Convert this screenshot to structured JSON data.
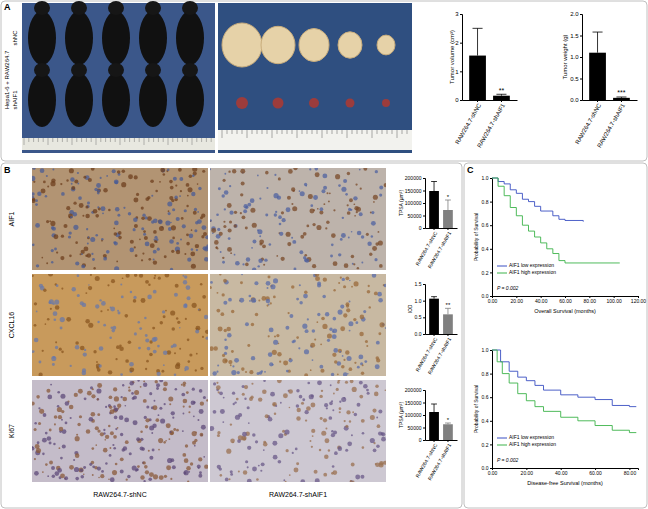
{
  "figure": {
    "panels": [
      "A",
      "B",
      "C"
    ],
    "mouse_group_title": "Hepa1-6 + RAW264.7",
    "mouse_groups": [
      "shNC",
      "shAIF1"
    ],
    "ihc_rows": [
      "AIF1",
      "CXCL16",
      "Ki67"
    ],
    "ihc_columns": [
      "RAW264.7-shNC",
      "RAW264.7-shAIF1"
    ]
  },
  "chart_data": [
    {
      "type": "bar",
      "y_label": "Tumor volume (cm³)",
      "categories": [
        "RAW264.7-shNC",
        "RAW264.7-shAIF1"
      ],
      "values": [
        1.55,
        0.15
      ],
      "errors": [
        0.95,
        0.05
      ],
      "colors": [
        "#000000",
        "#000000"
      ],
      "significance": [
        null,
        "**"
      ],
      "ylim": [
        0,
        3
      ],
      "yticks": [
        0,
        1,
        2,
        3
      ]
    },
    {
      "type": "bar",
      "y_label": "Tumor weight (g)",
      "categories": [
        "RAW264.7-shNC",
        "RAW264.7-shAIF1"
      ],
      "values": [
        1.1,
        0.05
      ],
      "errors": [
        0.48,
        0.02
      ],
      "colors": [
        "#000000",
        "#000000"
      ],
      "significance": [
        null,
        "***"
      ],
      "ylim": [
        0,
        2
      ],
      "yticks": [
        {
          "value": 0,
          "label": "0.0"
        },
        {
          "value": 0.5,
          "label": "0.5"
        },
        {
          "value": 1,
          "label": "1.0"
        },
        {
          "value": 1.5,
          "label": "1.5"
        },
        {
          "value": 2,
          "label": "2.0"
        }
      ]
    },
    {
      "type": "bar",
      "y_label": "TPSA (μm²)",
      "categories": [
        "RAW264.7-shNC",
        "RAW264.7-shAIF1"
      ],
      "values": [
        148000,
        72000
      ],
      "errors": [
        38000,
        40000
      ],
      "colors": [
        "#000000",
        "#808080"
      ],
      "significance": [
        null,
        "*"
      ],
      "ylim": [
        0,
        200000
      ],
      "yticks": [
        0,
        50000,
        100000,
        150000,
        200000
      ]
    },
    {
      "type": "bar",
      "y_label": "IOD",
      "categories": [
        "RAW264.7-shNC",
        "RAW264.7-shAIF1"
      ],
      "values": [
        1.06,
        0.59
      ],
      "errors": [
        0.06,
        0.18
      ],
      "colors": [
        "#000000",
        "#808080"
      ],
      "significance": [
        null,
        "**"
      ],
      "ylim": [
        0,
        1.5
      ],
      "yticks": [
        {
          "value": 0,
          "label": "0.0"
        },
        {
          "value": 0.5,
          "label": "0.5"
        },
        {
          "value": 1,
          "label": "1.0"
        },
        {
          "value": 1.5,
          "label": "1.5"
        }
      ]
    },
    {
      "type": "bar",
      "y_label": "TPSA (μm²)",
      "categories": [
        "RAW264.7-shNC",
        "RAW264.7-shAIF1"
      ],
      "values": [
        112000,
        63000
      ],
      "errors": [
        32000,
        5000
      ],
      "colors": [
        "#000000",
        "#808080"
      ],
      "significance": [
        null,
        "*"
      ],
      "ylim": [
        0,
        200000
      ],
      "yticks": [
        0,
        50000,
        100000,
        150000,
        200000
      ]
    },
    {
      "type": "line",
      "line_style": "step",
      "x_label": "Overall Survival (months)",
      "y_label": "Probability of Survival",
      "legend": "lower left",
      "annotations": [
        "P = 0.002"
      ],
      "series": [
        {
          "name": "AIF1 low expression",
          "color": "#3a4fc2",
          "x": [
            0,
            5,
            10,
            15,
            20,
            25,
            30,
            35,
            40,
            50,
            55,
            60,
            75
          ],
          "values": [
            1,
            0.97,
            0.95,
            0.9,
            0.87,
            0.82,
            0.8,
            0.76,
            0.72,
            0.68,
            0.65,
            0.64,
            0.63
          ]
        },
        {
          "name": "AIF1 high expression",
          "color": "#3cb34a",
          "x": [
            0,
            5,
            10,
            15,
            20,
            25,
            30,
            35,
            40,
            45,
            50,
            55,
            60,
            105
          ],
          "values": [
            1,
            0.93,
            0.85,
            0.75,
            0.68,
            0.6,
            0.55,
            0.5,
            0.45,
            0.4,
            0.36,
            0.3,
            0.28,
            0.28
          ]
        }
      ],
      "xlim": [
        0,
        120
      ],
      "xticks": [
        {
          "value": 0,
          "label": "0.00"
        },
        {
          "value": 20,
          "label": "20.00"
        },
        {
          "value": 40,
          "label": "40.00"
        },
        {
          "value": 60,
          "label": "60.00"
        },
        {
          "value": 80,
          "label": "80.00"
        },
        {
          "value": 100,
          "label": "100.00"
        },
        {
          "value": 120,
          "label": "120.00"
        }
      ],
      "ylim": [
        0,
        1
      ],
      "yticks": [
        {
          "value": 0,
          "label": "0.0"
        },
        {
          "value": 0.2,
          "label": "0.2"
        },
        {
          "value": 0.4,
          "label": "0.4"
        },
        {
          "value": 0.6,
          "label": "0.6"
        },
        {
          "value": 0.8,
          "label": "0.8"
        },
        {
          "value": 1,
          "label": "1.0"
        }
      ]
    },
    {
      "type": "line",
      "line_style": "step",
      "x_label": "Disease-free Survival (months)",
      "y_label": "Probability of Survival",
      "legend": "lower left",
      "annotations": [
        "P = 0.002"
      ],
      "series": [
        {
          "name": "AIF1 low expression",
          "color": "#3a4fc2",
          "x": [
            0,
            5,
            10,
            15,
            20,
            25,
            30,
            40,
            50,
            60,
            70,
            80,
            84
          ],
          "values": [
            1,
            0.9,
            0.82,
            0.77,
            0.74,
            0.7,
            0.66,
            0.62,
            0.6,
            0.58,
            0.53,
            0.52,
            0.52
          ]
        },
        {
          "name": "AIF1 high expression",
          "color": "#3cb34a",
          "x": [
            0,
            3,
            6,
            10,
            15,
            20,
            25,
            30,
            40,
            50,
            60,
            70,
            80,
            84
          ],
          "values": [
            1,
            0.9,
            0.8,
            0.72,
            0.63,
            0.57,
            0.52,
            0.48,
            0.43,
            0.4,
            0.36,
            0.32,
            0.3,
            0.3
          ]
        }
      ],
      "xlim": [
        0,
        85
      ],
      "xticks": [
        {
          "value": 0,
          "label": "0.00"
        },
        {
          "value": 20,
          "label": "20.00"
        },
        {
          "value": 40,
          "label": "40.00"
        },
        {
          "value": 60,
          "label": "60.00"
        },
        {
          "value": 80,
          "label": "80.00"
        }
      ],
      "ylim": [
        0,
        1
      ],
      "yticks": [
        {
          "value": 0,
          "label": "0.0"
        },
        {
          "value": 0.2,
          "label": "0.2"
        },
        {
          "value": 0.4,
          "label": "0.4"
        },
        {
          "value": 0.6,
          "label": "0.6"
        },
        {
          "value": 0.8,
          "label": "0.8"
        },
        {
          "value": 1,
          "label": "1.0"
        }
      ]
    }
  ]
}
